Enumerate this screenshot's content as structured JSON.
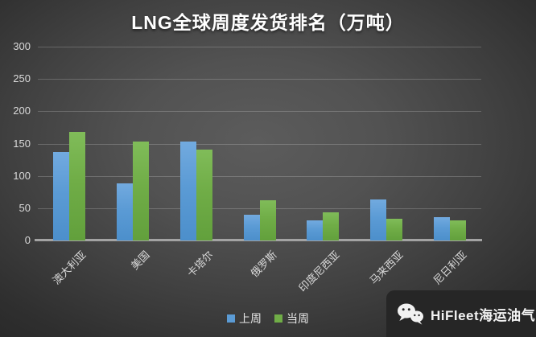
{
  "title": "LNG全球周度发货排名（万吨）",
  "chart_data": {
    "type": "bar",
    "title": "LNG全球周度发货排名（万吨）",
    "categories": [
      "澳大利亚",
      "美国",
      "卡塔尔",
      "俄罗斯",
      "印度尼西亚",
      "马来西亚",
      "尼日利亚"
    ],
    "series": [
      {
        "name": "上周",
        "color": "#5B9BD5",
        "values": [
          137,
          88,
          153,
          40,
          31,
          64,
          36
        ]
      },
      {
        "name": "当周",
        "color": "#70AD47",
        "values": [
          168,
          153,
          141,
          62,
          43,
          34,
          31
        ]
      }
    ],
    "xlabel": "",
    "ylabel": "",
    "ylim": [
      0,
      300
    ],
    "yticks": [
      0,
      50,
      100,
      150,
      200,
      250,
      300
    ],
    "grid": true,
    "legend_position": "bottom"
  },
  "colors": {
    "background_center": "#5c5c5c",
    "background_edge": "#242424",
    "series_last_week": "#5B9BD5",
    "series_this_week": "#70AD47",
    "axis_text": "#d9d9d9",
    "gridline": "rgba(255,255,255,0.20)",
    "baseline": "#a3a3a3",
    "watermark_bg": "#262626"
  },
  "watermark": {
    "icon": "wechat-icon",
    "text": "HiFleet海运油气"
  }
}
